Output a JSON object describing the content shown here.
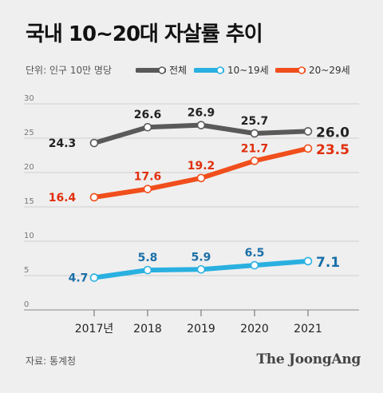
{
  "title": "국내 10~20대 자살률 추이",
  "unit_label": "단위: 인구 10만 명당",
  "source": "자료: 통계청",
  "brand": "The JoongAng",
  "chart_data": {
    "type": "line",
    "categories": [
      "2017년",
      "2018",
      "2019",
      "2020",
      "2021"
    ],
    "ylim": [
      0,
      30
    ],
    "yticks": [
      0,
      5,
      10,
      15,
      20,
      25,
      30
    ],
    "grid": true,
    "legend_position": "top",
    "series": [
      {
        "name": "전체",
        "color": "#595959",
        "label_color": "#222222",
        "values": [
          24.3,
          26.6,
          26.9,
          25.7,
          26.0
        ]
      },
      {
        "name": "10~19세",
        "color": "#29b0e0",
        "label_color": "#1a6fa8",
        "values": [
          4.7,
          5.8,
          5.9,
          6.5,
          7.1
        ]
      },
      {
        "name": "20~29세",
        "color": "#f04e1c",
        "label_color": "#e02f0c",
        "values": [
          16.4,
          17.6,
          19.2,
          21.7,
          23.5
        ]
      }
    ]
  }
}
